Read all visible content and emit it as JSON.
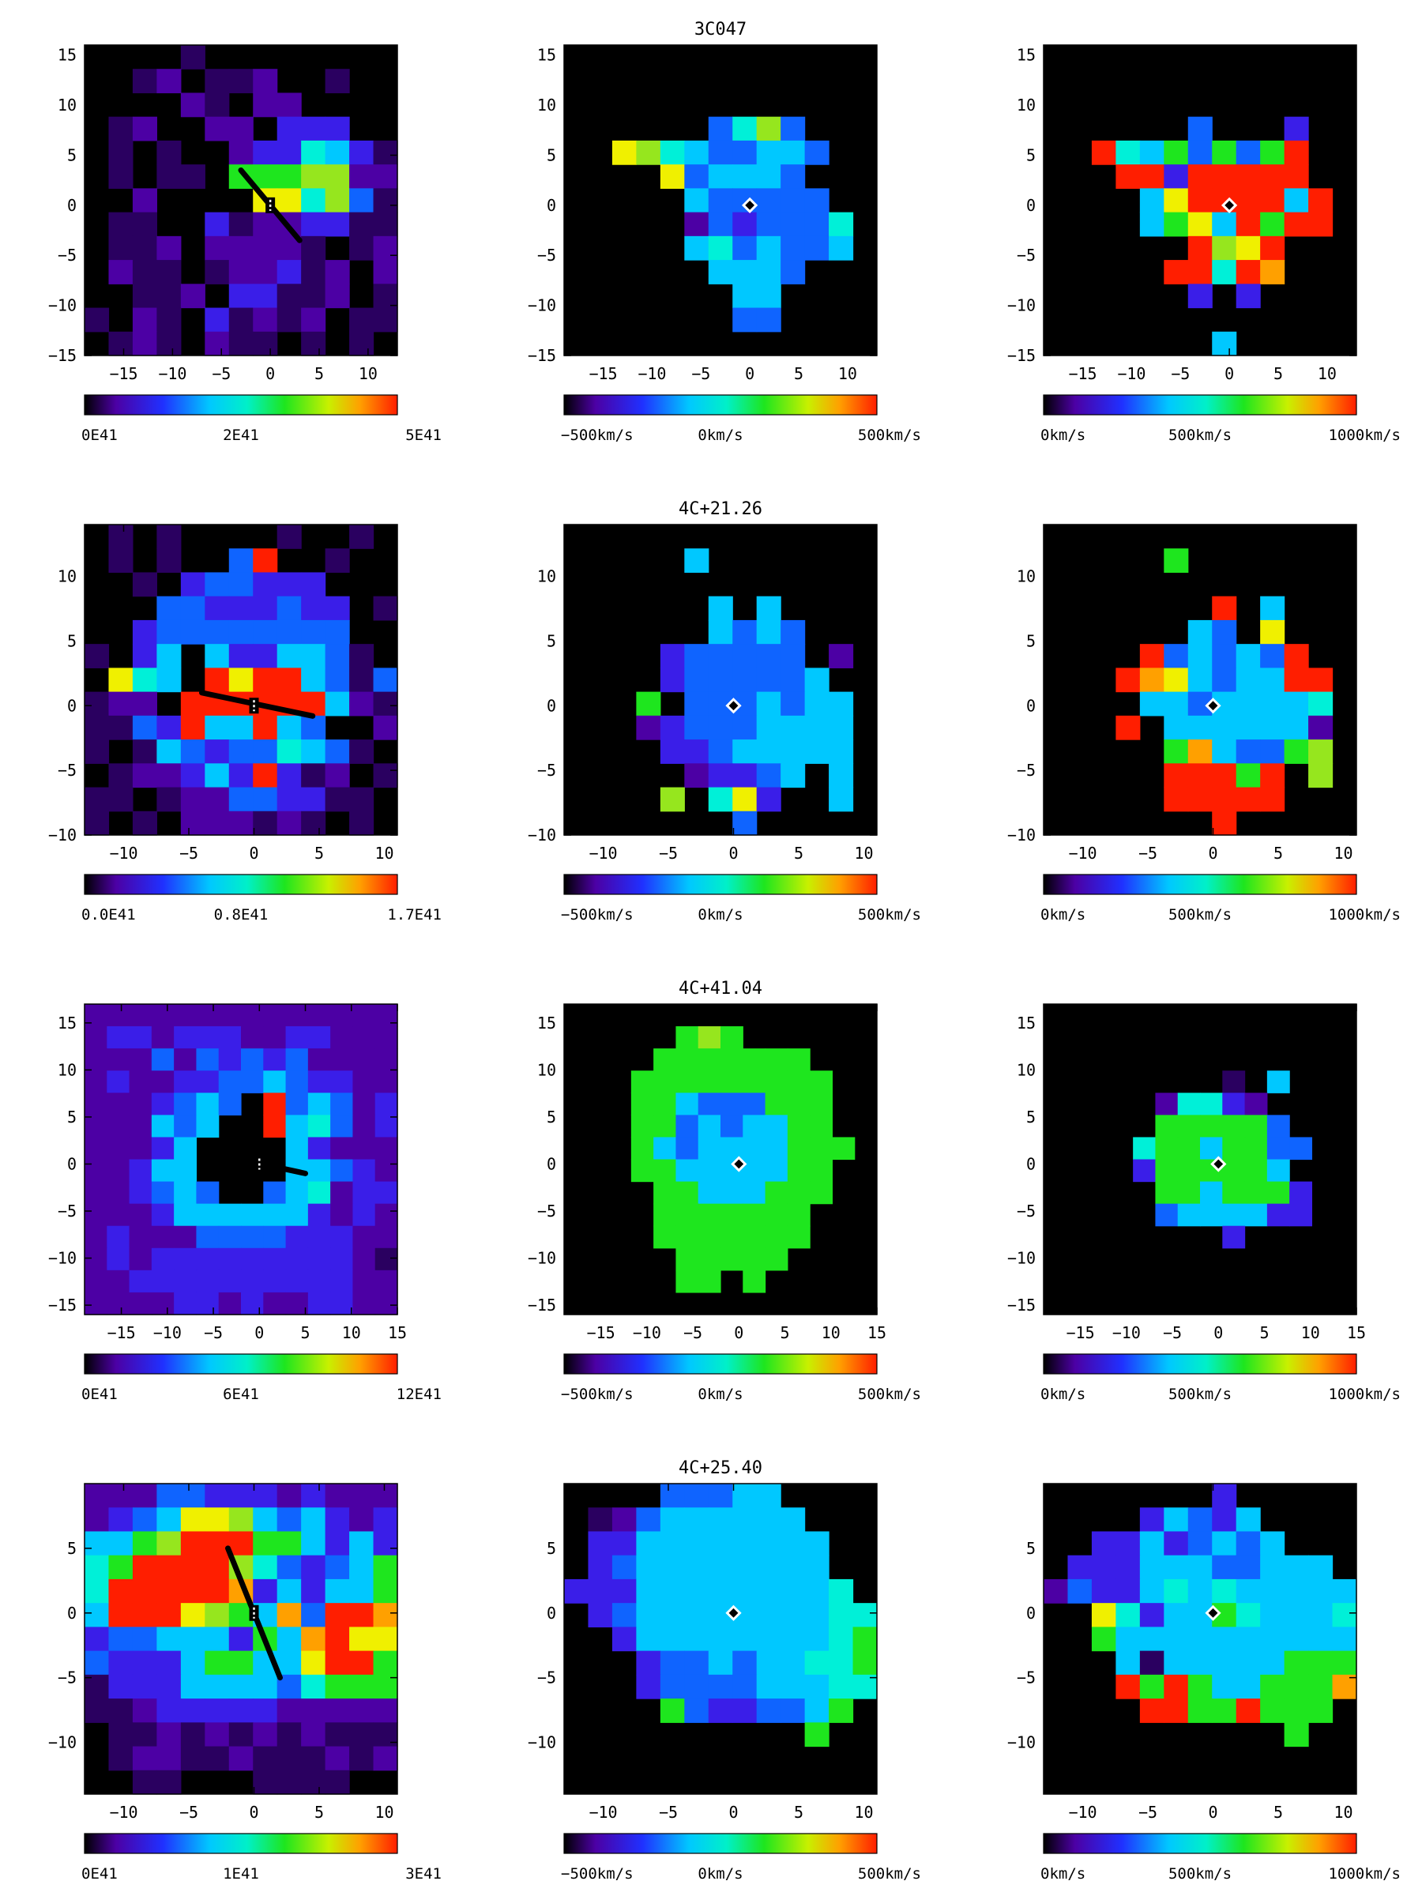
{
  "figure": {
    "rows": [
      {
        "title": "3C047",
        "xticks": [
          "−15",
          "−10",
          "−5",
          "0",
          "5",
          "10"
        ],
        "yticks": [
          "15",
          "10",
          "5",
          "0",
          "−5",
          "−10",
          "−15"
        ]
      },
      {
        "title": "4C+21.26",
        "xticks": [
          "−10",
          "−5",
          "0",
          "5",
          "10"
        ],
        "yticks": [
          "10",
          "5",
          "0",
          "−5",
          "−10"
        ]
      },
      {
        "title": "4C+41.04",
        "xticks": [
          "−15",
          "−10",
          "−5",
          "0",
          "5",
          "10",
          "15"
        ],
        "yticks": [
          "15",
          "10",
          "5",
          "0",
          "−5",
          "−10",
          "−15"
        ]
      },
      {
        "title": "4C+25.40",
        "xticks": [
          "−10",
          "−5",
          "0",
          "5",
          "10"
        ],
        "yticks": [
          "5",
          "0",
          "−5",
          "−10"
        ]
      }
    ],
    "colorbars": {
      "flux": [
        [
          "0E41",
          "2E41",
          "5E41"
        ],
        [
          "0.0E41",
          "0.8E41",
          "1.7E41"
        ],
        [
          "0E41",
          "6E41",
          "12E41"
        ],
        [
          "0E41",
          "1E41",
          "3E41"
        ]
      ],
      "velocity": [
        "−500km/s",
        "0km/s",
        "500km/s"
      ],
      "dispersion": [
        "0km/s",
        "500km/s",
        "1000km/s"
      ]
    },
    "colormap": [
      "#000000",
      "#2a0060",
      "#4c00a4",
      "#3a1ee8",
      "#0f64ff",
      "#00c8ff",
      "#00f0d8",
      "#1ee61e",
      "#96e61e",
      "#f0f000",
      "#ffa000",
      "#ff1e00"
    ]
  },
  "chart_data": [
    {
      "type": "heatmap",
      "panel": "flux map",
      "object": "3C047",
      "x_range": [
        -19,
        13
      ],
      "y_range": [
        -15,
        16
      ],
      "grid": [
        13,
        13
      ],
      "colorbar": {
        "min": 0,
        "max": 5,
        "unit": "E41"
      },
      "matrix": [
        "0000100000000",
        "0012011200100",
        "0000210220000",
        "0120022033300",
        "0101002336531",
        "0101107778822",
        "0020000996841",
        "0110031223311",
        "0112022221012",
        "0211012231202",
        "0011203311201",
        "1021031212011",
        "0121021101010"
      ]
    },
    {
      "type": "heatmap",
      "panel": "velocity map",
      "object": "3C047",
      "x_range": [
        -19,
        13
      ],
      "y_range": [
        -15,
        16
      ],
      "grid": [
        13,
        13
      ],
      "colorbar": {
        "min": -500,
        "max": 500,
        "unit": "km/s"
      },
      "matrix": [
        "0000000000000",
        "0000000000000",
        "0000000000000",
        "0000004684000",
        "0098654455400",
        "0000945554000",
        "0000054444400",
        "0000024344460",
        "0000056454450",
        "0000005554000",
        "0000000550000",
        "0000000440000",
        "0000000000000"
      ]
    },
    {
      "type": "heatmap",
      "panel": "dispersion map",
      "object": "3C047",
      "x_range": [
        -19,
        13
      ],
      "y_range": [
        -15,
        16
      ],
      "grid": [
        13,
        13
      ],
      "colorbar": {
        "min": 0,
        "max": 1000,
        "unit": "km/s"
      },
      "matrix": [
        "0000000000000",
        "0000000000000",
        "0000000000000",
        "0000004000300",
        "00B6574747B00",
        "000BB3BBBBB00",
        "000059BBBB5B0",
        "00005795B7BB0",
        "000000B89B000",
        "00000BB6BA000",
        "0000003030000",
        "0000000000000",
        "0000000500000"
      ]
    },
    {
      "type": "heatmap",
      "panel": "flux map",
      "object": "4C+21.26",
      "x_range": [
        -13,
        11
      ],
      "y_range": [
        -10,
        14
      ],
      "grid": [
        13,
        13
      ],
      "colorbar": {
        "min": 0.0,
        "max": 1.7,
        "unit": "E41"
      },
      "matrix": [
        "0101000010010",
        "0101004B00100",
        "0010344333000",
        "0004433343301",
        "0034444444400",
        "1035053355410",
        "09650B9BB5414",
        "1220BBBBBB521",
        "1143B55B54002",
        "1015434465410",
        "0122353B31201",
        "1101224433110",
        "1010222121010"
      ]
    },
    {
      "type": "heatmap",
      "panel": "velocity map",
      "object": "4C+21.26",
      "x_range": [
        -13,
        11
      ],
      "y_range": [
        -10,
        14
      ],
      "grid": [
        13,
        13
      ],
      "colorbar": {
        "min": -500,
        "max": 500,
        "unit": "km/s"
      },
      "matrix": [
        "0000000000000",
        "0000050000000",
        "0000000000000",
        "0000005050000",
        "0000005454000",
        "0000344444020",
        "0000344444500",
        "0007044454550",
        "0002344455550",
        "0000334555550",
        "0000023345050",
        "0000806930050",
        "0000000400000"
      ]
    },
    {
      "type": "heatmap",
      "panel": "dispersion map",
      "object": "4C+21.26",
      "x_range": [
        -13,
        11
      ],
      "y_range": [
        -10,
        14
      ],
      "grid": [
        13,
        13
      ],
      "colorbar": {
        "min": 0,
        "max": 1000,
        "unit": "km/s"
      },
      "matrix": [
        "0000000000000",
        "0000070000000",
        "0000000000000",
        "0000000B05000",
        "0000005409000",
        "0000B45454B00",
        "000BA95455BB0",
        "0000554555560",
        "000B055555520",
        "000007A544780",
        "00000BBB7B080",
        "00000BBBBB000",
        "0000000B00000"
      ]
    },
    {
      "type": "heatmap",
      "panel": "flux map",
      "object": "4C+41.04",
      "x_range": [
        -19,
        15
      ],
      "y_range": [
        -16,
        17
      ],
      "grid": [
        14,
        14
      ],
      "colorbar": {
        "min": 0,
        "max": 12,
        "unit": "E41"
      },
      "matrix": [
        "22222222222222",
        "23323332233222",
        "22242434342222",
        "23223344543322",
        "22234540B45423",
        "22254500B56423",
        "22235000053222",
        "22355000055432",
        "22345400456233",
        "22235555553232",
        "23222444433322",
        "23233333333321",
        "22333333333322",
        "22223323223322"
      ]
    },
    {
      "type": "heatmap",
      "panel": "velocity map",
      "object": "4C+41.04",
      "x_range": [
        -19,
        15
      ],
      "y_range": [
        -16,
        17
      ],
      "grid": [
        14,
        14
      ],
      "colorbar": {
        "min": -500,
        "max": 500,
        "unit": "km/s"
      },
      "matrix": [
        "00000000000000",
        "00000787000000",
        "00007777777000",
        "00077777777700",
        "00077544477700",
        "00077454557700",
        "00075455557770",
        "00077555557700",
        "00007755577700",
        "00007777777000",
        "00007777777000",
        "00000777770000",
        "00000770700000",
        "00000000000000"
      ]
    },
    {
      "type": "heatmap",
      "panel": "dispersion map",
      "object": "4C+41.04",
      "x_range": [
        -19,
        15
      ],
      "y_range": [
        -16,
        17
      ],
      "grid": [
        14,
        14
      ],
      "colorbar": {
        "min": 0,
        "max": 1000,
        "unit": "km/s"
      },
      "matrix": [
        "00000000000000",
        "00000000000000",
        "00000000000000",
        "00000000105000",
        "00000266320000",
        "00000777774000",
        "00006775774400",
        "00003777775000",
        "00000775777300",
        "00000455553300",
        "00000000300000",
        "00000000000000",
        "00000000000000",
        "00000000000000"
      ]
    },
    {
      "type": "heatmap",
      "panel": "flux map",
      "object": "4C+25.40",
      "x_range": [
        -13,
        11
      ],
      "y_range": [
        -14,
        10
      ],
      "grid": [
        13,
        13
      ],
      "colorbar": {
        "min": 0,
        "max": 3,
        "unit": "E41"
      },
      "matrix": [
        "2224433323222",
        "2345998545323",
        "5578BBB775353",
        "67BBBB8643457",
        "6BBBBBA353557",
        "5BBB9875A4BBA",
        "344555375AB99",
        "4333577559BB7",
        "1333555546777",
        "1123333322222",
        "0112121212111",
        "0122112111212",
        "0011000111100"
      ]
    },
    {
      "type": "heatmap",
      "panel": "velocity map",
      "object": "4C+25.40",
      "x_range": [
        -13,
        11
      ],
      "y_range": [
        -14,
        10
      ],
      "grid": [
        13,
        13
      ],
      "colorbar": {
        "min": -500,
        "max": 500,
        "unit": "km/s"
      },
      "matrix": [
        "0000444550000",
        "0124555555000",
        "0335555555500",
        "0345555555500",
        "3335555555560",
        "0345555555566",
        "0035555555567",
        "0003445455667",
        "0003444455566",
        "0000743344570",
        "0000000000700",
        "0000000000000",
        "0000000000000"
      ]
    },
    {
      "type": "heatmap",
      "panel": "dispersion map",
      "object": "4C+25.40",
      "x_range": [
        -13,
        11
      ],
      "y_range": [
        -14,
        10
      ],
      "grid": [
        13,
        13
      ],
      "colorbar": {
        "min": 0,
        "max": 1000,
        "unit": "km/s"
      },
      "matrix": [
        "0000000300000",
        "0000354350000",
        "0033534545000",
        "0333555445550",
        "2433565655555",
        "0096355765556",
        "0075555555555",
        "0005155555777",
        "000B7B755777A",
        "0000BB77B7770",
        "0000000000700",
        "0000000000000",
        "0000000000000"
      ]
    }
  ]
}
